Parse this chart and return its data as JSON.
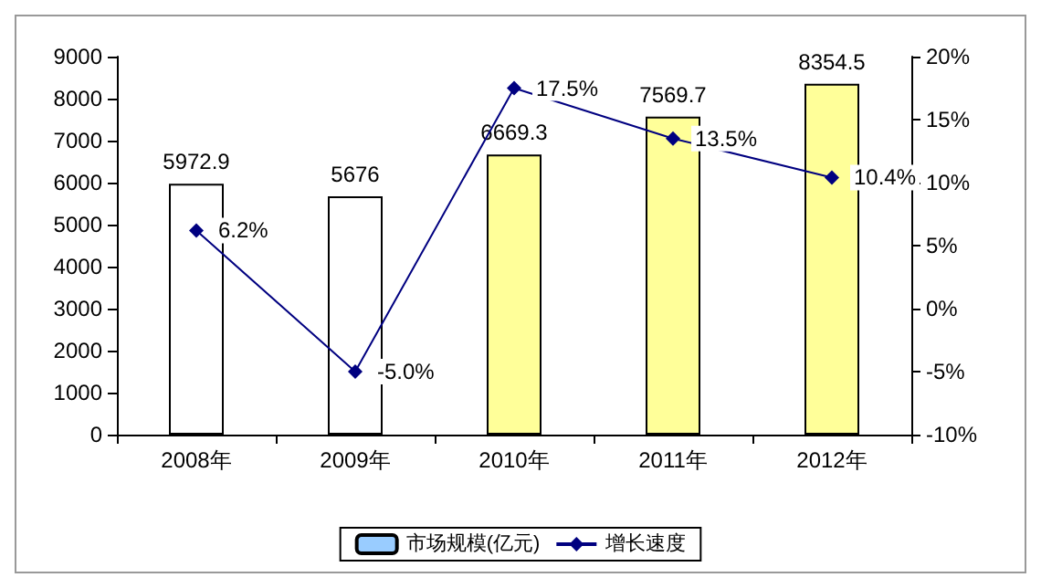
{
  "chart_data": {
    "type": "bar",
    "categories": [
      "2008年",
      "2009年",
      "2010年",
      "2011年",
      "2012年"
    ],
    "series": [
      {
        "name": "市场规模(亿元)",
        "color": "#99ccff",
        "colors": [
          "#ffffff",
          "#ffffff",
          "#ffff99",
          "#ffff99",
          "#ffff99"
        ],
        "values": [
          5972.9,
          5676,
          6669.3,
          7569.7,
          8354.5
        ],
        "value_labels": [
          "5972.9",
          "5676",
          "6669.3",
          "7569.7",
          "8354.5"
        ]
      },
      {
        "name": "增长速度",
        "type": "line",
        "axis": "y2",
        "color": "#000080",
        "marker": "diamond",
        "values": [
          6.2,
          -5.0,
          17.5,
          13.5,
          10.4
        ],
        "value_labels": [
          "6.2%",
          "-5.0%",
          "17.5%",
          "13.5%",
          "10.4%"
        ]
      }
    ],
    "ylim": [
      0,
      9000
    ],
    "yticks": [
      0,
      1000,
      2000,
      3000,
      4000,
      5000,
      6000,
      7000,
      8000,
      9000
    ],
    "y2lim": [
      -10,
      20
    ],
    "y2ticks": [
      {
        "value": -10,
        "label": "-10%"
      },
      {
        "value": -5,
        "label": "-5%"
      },
      {
        "value": 0,
        "label": "0%"
      },
      {
        "value": 5,
        "label": "5%"
      },
      {
        "value": 10,
        "label": "10%"
      },
      {
        "value": 15,
        "label": "15%"
      },
      {
        "value": 20,
        "label": "20%"
      }
    ],
    "legend": "bottom",
    "grid": false
  }
}
